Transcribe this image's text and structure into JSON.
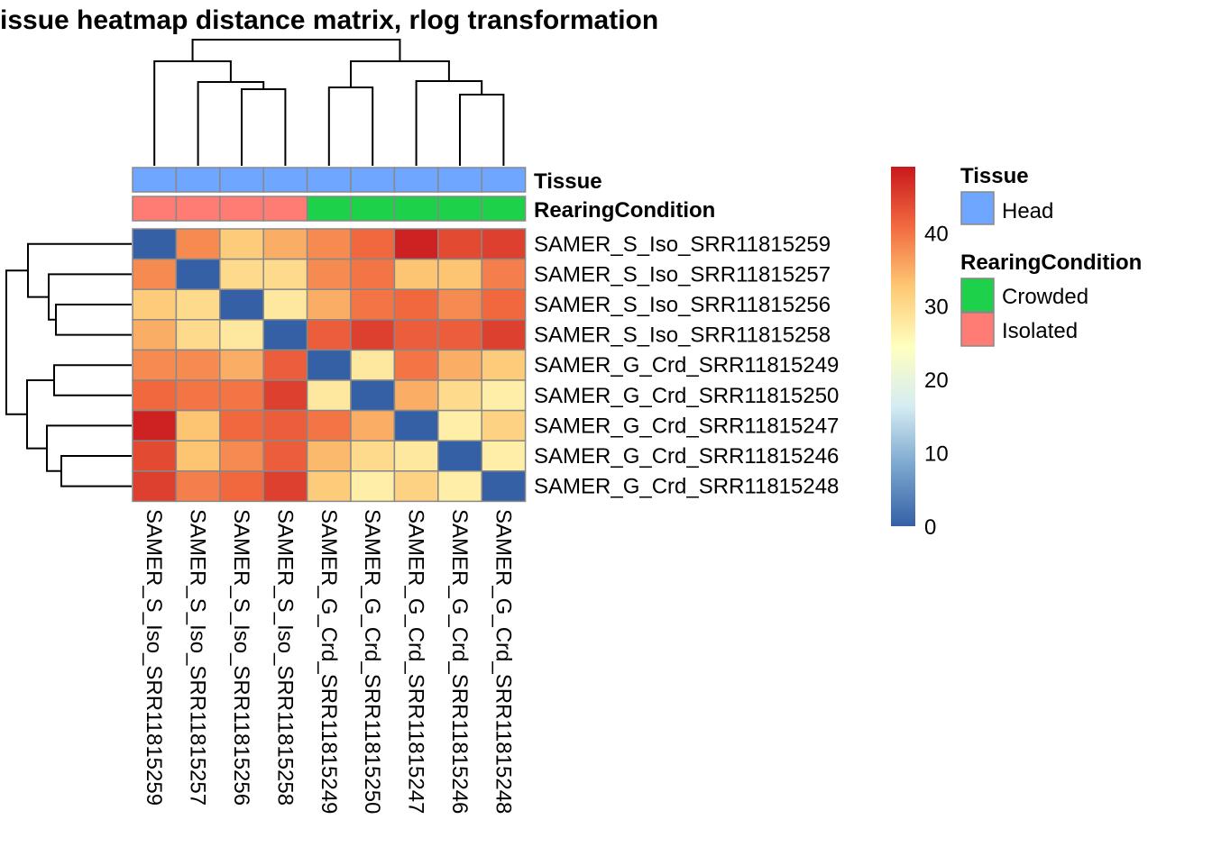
{
  "chart_data": {
    "type": "heatmap",
    "title": "issue heatmap distance matrix, rlog transformation",
    "rows": [
      "SAMER_S_Iso_SRR11815259",
      "SAMER_S_Iso_SRR11815257",
      "SAMER_S_Iso_SRR11815256",
      "SAMER_S_Iso_SRR11815258",
      "SAMER_G_Crd_SRR11815249",
      "SAMER_G_Crd_SRR11815250",
      "SAMER_G_Crd_SRR11815247",
      "SAMER_G_Crd_SRR11815246",
      "SAMER_G_Crd_SRR11815248"
    ],
    "columns": [
      "SAMER_S_Iso_SRR11815259",
      "SAMER_S_Iso_SRR11815257",
      "SAMER_S_Iso_SRR11815256",
      "SAMER_S_Iso_SRR11815258",
      "SAMER_G_Crd_SRR11815249",
      "SAMER_G_Crd_SRR11815250",
      "SAMER_G_Crd_SRR11815247",
      "SAMER_G_Crd_SRR11815246",
      "SAMER_G_Crd_SRR11815248"
    ],
    "values": [
      [
        0,
        38,
        32,
        35,
        38,
        41,
        48,
        44,
        45
      ],
      [
        38,
        0,
        30,
        30,
        38,
        40,
        33,
        33,
        39
      ],
      [
        32,
        30,
        0,
        28,
        35,
        40,
        41,
        38,
        41
      ],
      [
        35,
        30,
        28,
        0,
        42,
        45,
        42,
        42,
        45
      ],
      [
        38,
        38,
        35,
        42,
        0,
        28,
        40,
        35,
        32
      ],
      [
        41,
        40,
        40,
        45,
        28,
        0,
        35,
        30,
        27
      ],
      [
        48,
        33,
        41,
        42,
        40,
        35,
        0,
        27,
        31
      ],
      [
        44,
        33,
        38,
        42,
        34,
        30,
        28,
        0,
        27
      ],
      [
        45,
        39,
        41,
        45,
        32,
        27,
        31,
        27,
        0
      ]
    ],
    "color_scale": {
      "range": [
        0,
        49
      ],
      "ticks": [
        "0",
        "10",
        "20",
        "30",
        "40"
      ],
      "colors": [
        "#3560A6",
        "#7AA6CE",
        "#D5ECF3",
        "#FFFFBF",
        "#FDC874",
        "#F26A40",
        "#C8181D"
      ]
    },
    "annotations": {
      "Tissue": [
        "Head",
        "Head",
        "Head",
        "Head",
        "Head",
        "Head",
        "Head",
        "Head",
        "Head"
      ],
      "RearingCondition": [
        "Isolated",
        "Isolated",
        "Isolated",
        "Isolated",
        "Crowded",
        "Crowded",
        "Crowded",
        "Crowded",
        "Crowded"
      ]
    },
    "annotation_labels": [
      "Tissue",
      "RearingCondition"
    ],
    "legend": {
      "Tissue": {
        "title": "Tissue",
        "items": [
          {
            "label": "Head",
            "color": "#6FA6FF"
          }
        ]
      },
      "RearingCondition": {
        "title": "RearingCondition",
        "items": [
          {
            "label": "Crowded",
            "color": "#1ED14B"
          },
          {
            "label": "Isolated",
            "color": "#FF7C74"
          }
        ]
      }
    },
    "row_dendrogram": true,
    "column_dendrogram": true
  }
}
